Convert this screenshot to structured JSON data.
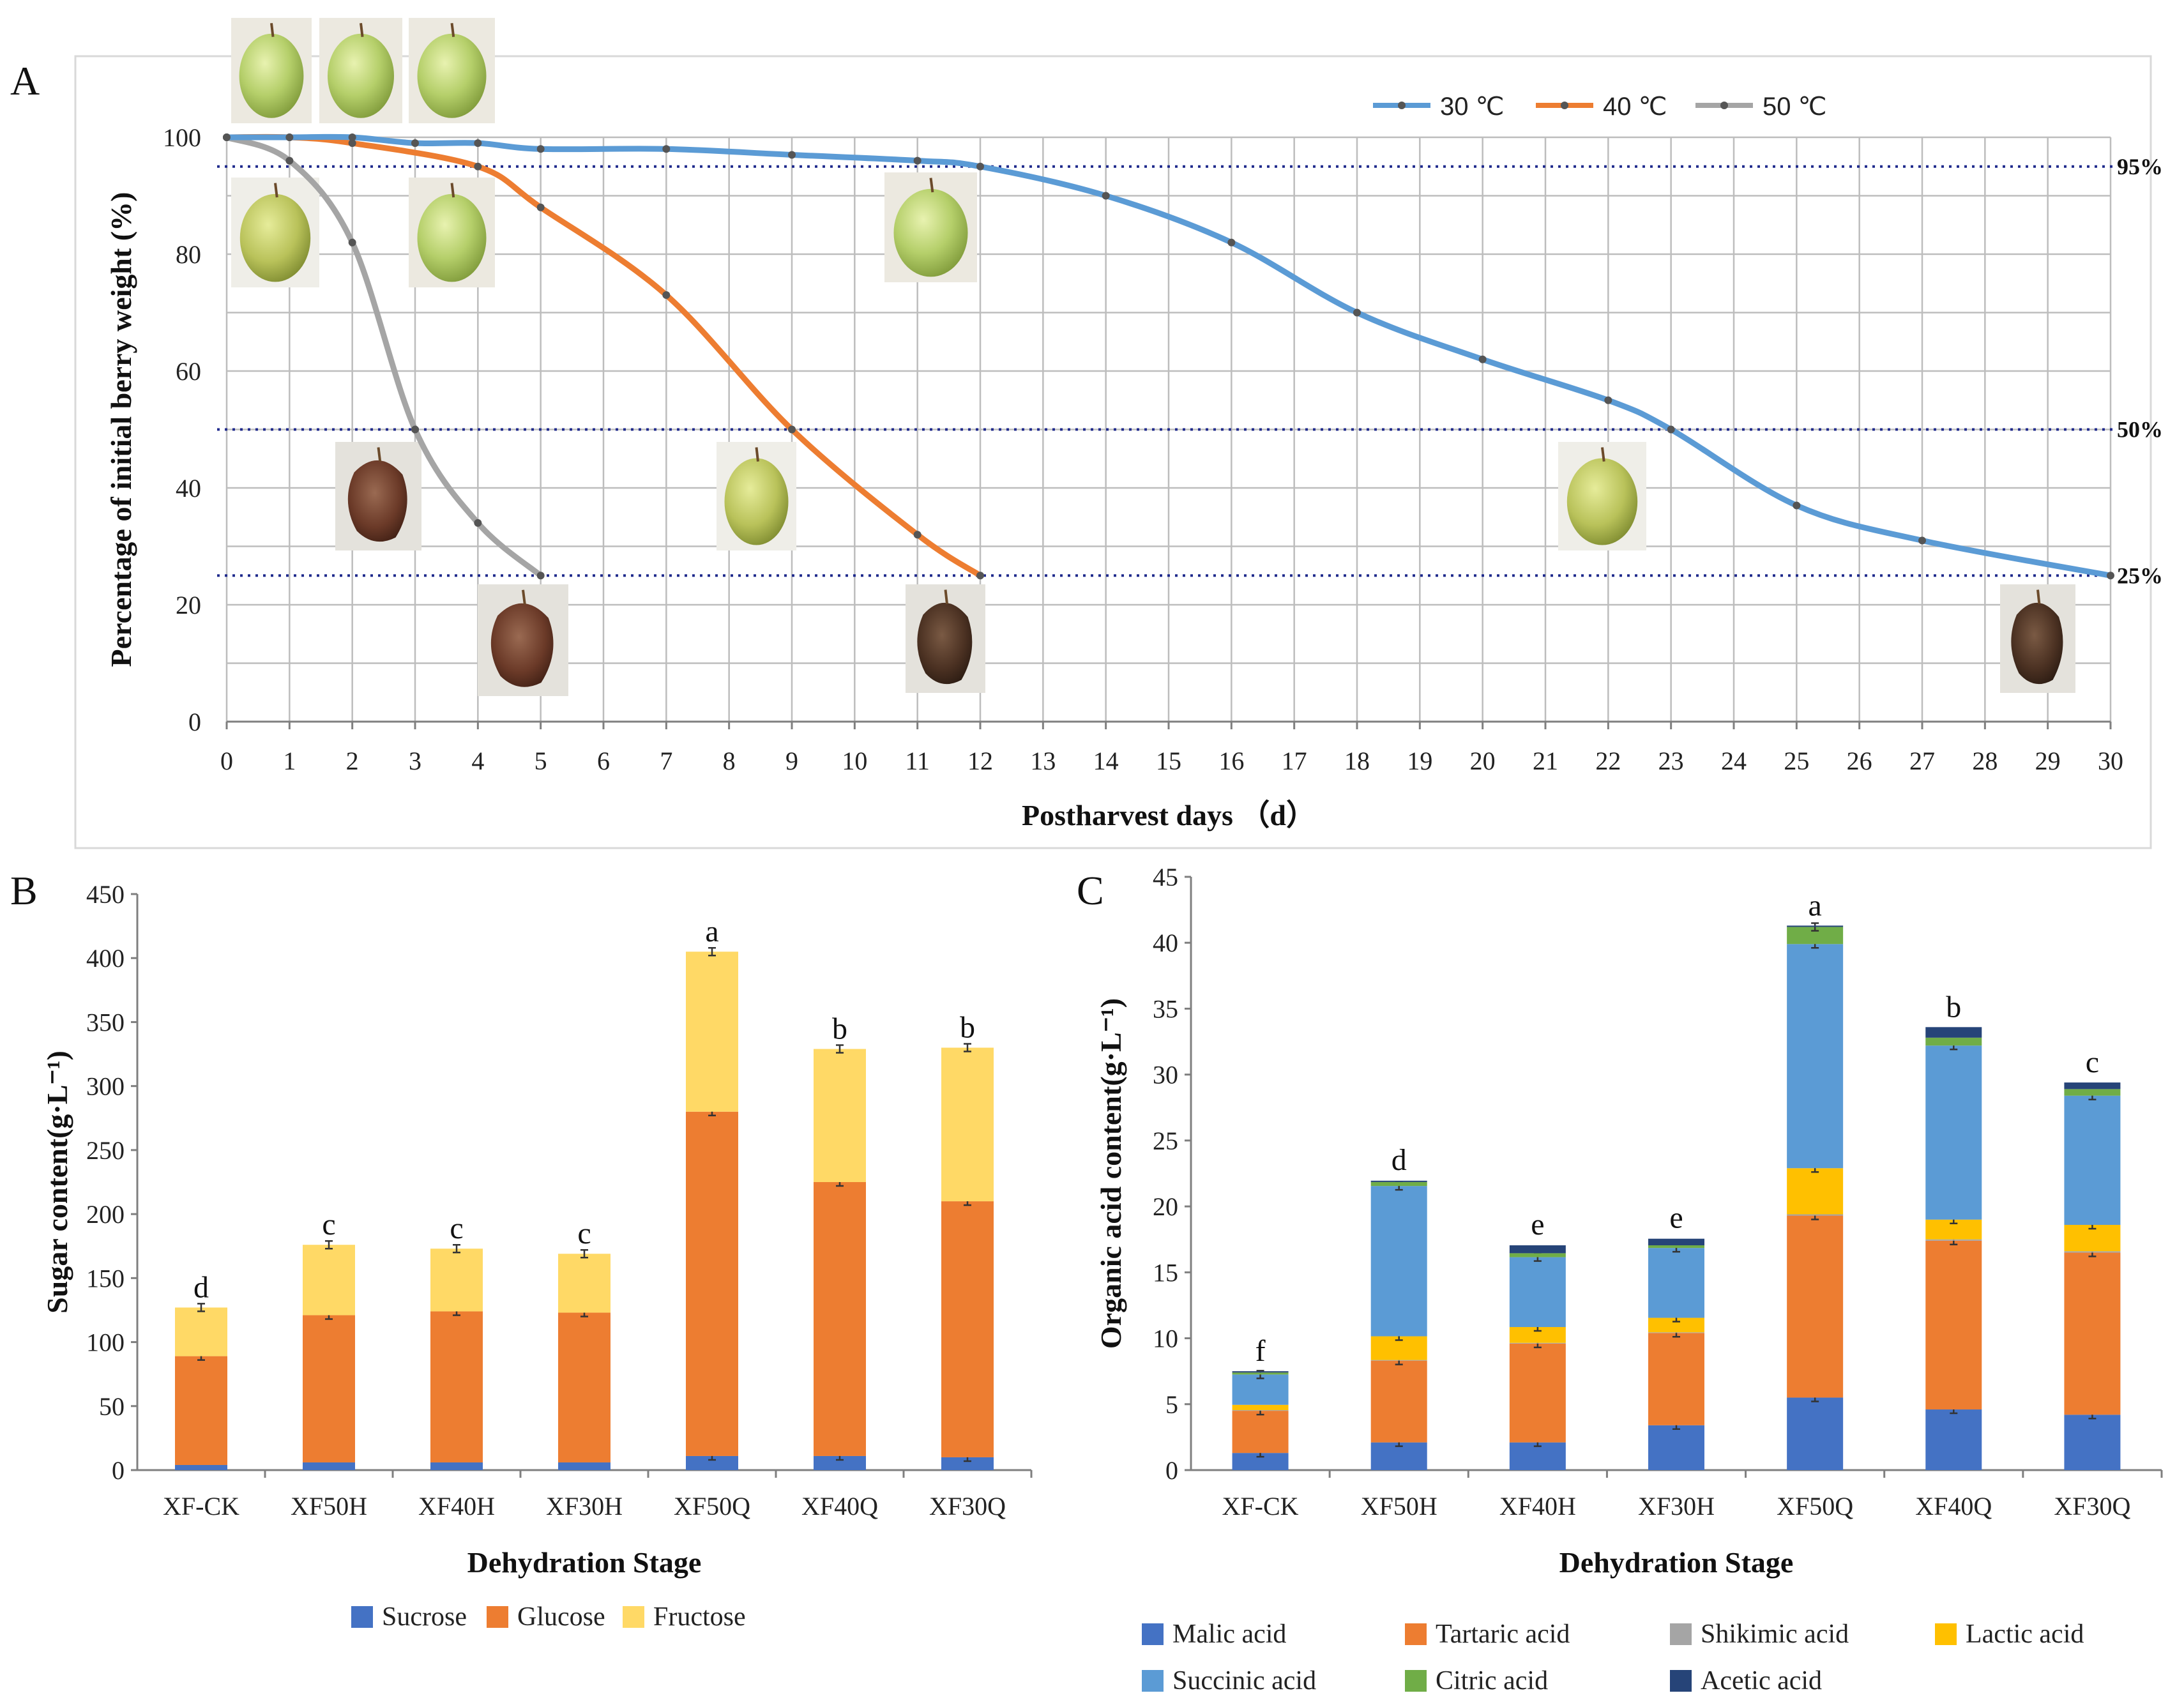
{
  "panels": {
    "a": "A",
    "b": "B",
    "c": "C"
  },
  "chart_data": [
    {
      "type": "line",
      "title": "",
      "xlabel": "Postharvest days （d）",
      "ylabel": "Percentage of initial berry weight (%)",
      "x_ticks": [
        "0",
        "1",
        "2",
        "3",
        "4",
        "5",
        "6",
        "7",
        "8",
        "9",
        "10",
        "11",
        "12",
        "13",
        "14",
        "15",
        "16",
        "17",
        "18",
        "19",
        "20",
        "21",
        "22",
        "23",
        "24",
        "25",
        "26",
        "27",
        "28",
        "29",
        "30"
      ],
      "y_ticks": [
        "0",
        "20",
        "40",
        "60",
        "80",
        "100"
      ],
      "xlim": [
        0,
        30
      ],
      "ylim": [
        0,
        100
      ],
      "threshold_lines": [
        {
          "value": 95,
          "label": "95%"
        },
        {
          "value": 50,
          "label": "50%"
        },
        {
          "value": 25,
          "label": "25%"
        }
      ],
      "series": [
        {
          "name": "30 ℃",
          "color": "#5b9bd5",
          "x": [
            0,
            1,
            2,
            3,
            4,
            5,
            7,
            9,
            11,
            12,
            14,
            16,
            18,
            20,
            22,
            23,
            25,
            27,
            30
          ],
          "y": [
            100,
            100,
            100,
            99,
            99,
            98,
            98,
            97,
            96,
            95,
            90,
            82,
            70,
            62,
            55,
            50,
            37,
            31,
            25
          ]
        },
        {
          "name": "40 ℃",
          "color": "#ed7d31",
          "x": [
            0,
            1,
            2,
            4,
            5,
            7,
            9,
            11,
            12
          ],
          "y": [
            100,
            100,
            99,
            95,
            88,
            73,
            50,
            32,
            25
          ]
        },
        {
          "name": "50 ℃",
          "color": "#a5a5a5",
          "x": [
            0,
            1,
            2,
            3,
            4,
            5
          ],
          "y": [
            100,
            96,
            82,
            50,
            34,
            25
          ]
        }
      ]
    },
    {
      "type": "bar",
      "stacked": true,
      "title": "",
      "xlabel": "Dehydration Stage",
      "ylabel": "Sugar content(g·L⁻¹)",
      "ylim": [
        0,
        450
      ],
      "y_ticks": [
        "0",
        "50",
        "100",
        "150",
        "200",
        "250",
        "300",
        "350",
        "400",
        "450"
      ],
      "categories": [
        "XF-CK",
        "XF50H",
        "XF40H",
        "XF30H",
        "XF50Q",
        "XF40Q",
        "XF30Q"
      ],
      "significance": [
        "d",
        "c",
        "c",
        "c",
        "a",
        "b",
        "b"
      ],
      "series": [
        {
          "name": "Sucrose",
          "color": "#4472c4",
          "values": [
            4,
            6,
            6,
            6,
            11,
            11,
            10
          ]
        },
        {
          "name": "Glucose",
          "color": "#ed7d31",
          "values": [
            85,
            115,
            118,
            117,
            269,
            214,
            200
          ]
        },
        {
          "name": "Fructose",
          "color": "#ffd966",
          "values": [
            38,
            55,
            49,
            46,
            125,
            104,
            120
          ]
        }
      ],
      "totals": [
        127,
        176,
        173,
        169,
        405,
        329,
        330
      ]
    },
    {
      "type": "bar",
      "stacked": true,
      "title": "",
      "xlabel": "Dehydration Stage",
      "ylabel": "Organic acid content(g·L⁻¹)",
      "ylim": [
        0,
        45
      ],
      "y_ticks": [
        "0",
        "5",
        "10",
        "15",
        "20",
        "25",
        "30",
        "35",
        "40",
        "45"
      ],
      "categories": [
        "XF-CK",
        "XF50H",
        "XF40H",
        "XF30H",
        "XF50Q",
        "XF40Q",
        "XF30Q"
      ],
      "significance": [
        "f",
        "d",
        "e",
        "e",
        "a",
        "b",
        "c"
      ],
      "series": [
        {
          "name": "Malic acid",
          "color": "#4472c4",
          "values": [
            1.3,
            2.1,
            2.1,
            3.4,
            5.5,
            4.6,
            4.2
          ]
        },
        {
          "name": "Tartaric acid",
          "color": "#ed7d31",
          "values": [
            3.2,
            6.2,
            7.5,
            7.0,
            13.8,
            12.8,
            12.3
          ]
        },
        {
          "name": "Shikimic acid",
          "color": "#a5a5a5",
          "values": [
            0.05,
            0.05,
            0.05,
            0.05,
            0.1,
            0.1,
            0.1
          ]
        },
        {
          "name": "Lactic acid",
          "color": "#ffc000",
          "values": [
            0.4,
            1.8,
            1.2,
            1.1,
            3.5,
            1.5,
            2.0
          ]
        },
        {
          "name": "Succinic acid",
          "color": "#5b9bd5",
          "values": [
            2.3,
            11.4,
            5.3,
            5.3,
            17.0,
            13.2,
            9.8
          ]
        },
        {
          "name": "Citric acid",
          "color": "#70ad47",
          "values": [
            0.15,
            0.3,
            0.3,
            0.2,
            1.3,
            0.6,
            0.5
          ]
        },
        {
          "name": "Acetic acid",
          "color": "#264478",
          "values": [
            0.1,
            0.1,
            0.6,
            0.5,
            0.1,
            0.8,
            0.5
          ]
        }
      ],
      "totals": [
        7.5,
        22.0,
        17.1,
        17.6,
        41.3,
        33.6,
        29.4
      ]
    }
  ]
}
